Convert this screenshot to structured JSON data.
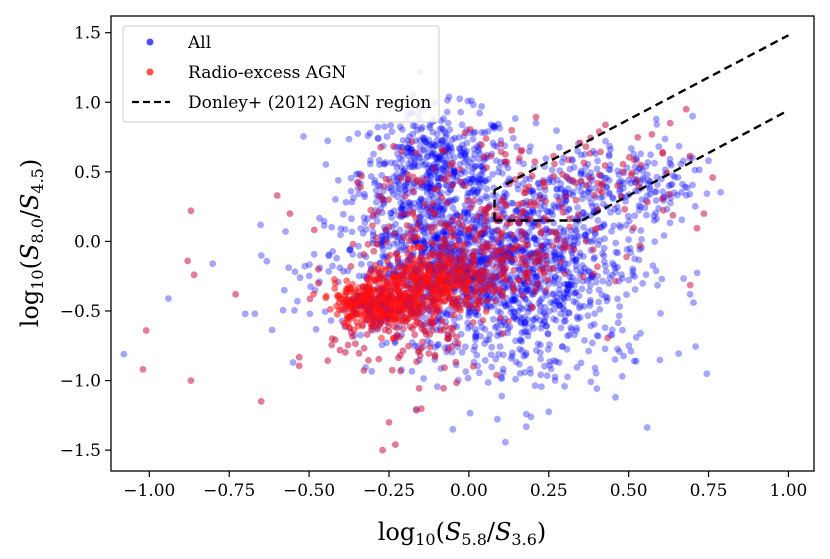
{
  "chart_data": {
    "type": "scatter",
    "xlabel": "log10(S5.8/S3.6)",
    "ylabel": "log10(S8.0/S4.5)",
    "xlim": [
      -1.12,
      1.08
    ],
    "ylim": [
      -1.65,
      1.62
    ],
    "x_ticks": [
      -1.0,
      -0.75,
      -0.5,
      -0.25,
      0.0,
      0.25,
      0.5,
      0.75,
      1.0
    ],
    "x_tick_labels": [
      "−1.00",
      "−0.75",
      "−0.50",
      "−0.25",
      "0.00",
      "0.25",
      "0.50",
      "0.75",
      "1.00"
    ],
    "y_ticks": [
      -1.5,
      -1.0,
      -0.5,
      0.0,
      0.5,
      1.0,
      1.5
    ],
    "y_tick_labels": [
      "−1.5",
      "−1.0",
      "−0.5",
      "0.0",
      "0.5",
      "1.0",
      "1.5"
    ],
    "grid": false,
    "legend_position": "top-left",
    "legend": [
      {
        "label": "All",
        "marker": "circle",
        "color": "#4d4dff"
      },
      {
        "label": "Radio-excess AGN",
        "marker": "circle",
        "color": "#ff5050"
      },
      {
        "label": "Donley+ (2012) AGN region",
        "marker": "dashed-line",
        "color": "#000000"
      }
    ],
    "series": [
      {
        "name": "All",
        "color": "#0000ff",
        "opacity": 0.35,
        "clusters": [
          {
            "cx": -0.1,
            "cy": 0.5,
            "sx": 0.12,
            "sy": 0.22,
            "n": 520
          },
          {
            "cx": -0.05,
            "cy": -0.2,
            "sx": 0.2,
            "sy": 0.25,
            "n": 900
          },
          {
            "cx": 0.2,
            "cy": -0.15,
            "sx": 0.18,
            "sy": 0.28,
            "n": 450
          },
          {
            "cx": 0.35,
            "cy": 0.35,
            "sx": 0.15,
            "sy": 0.18,
            "n": 200
          },
          {
            "cx": 0.15,
            "cy": -0.7,
            "sx": 0.18,
            "sy": 0.25,
            "n": 200
          },
          {
            "cx": 0.55,
            "cy": 0.45,
            "sx": 0.1,
            "sy": 0.12,
            "n": 80
          }
        ],
        "outliers": [
          {
            "x": -1.08,
            "y": -0.81
          },
          {
            "x": -0.94,
            "y": -0.41
          },
          {
            "x": -0.7,
            "y": -0.52
          },
          {
            "x": -0.67,
            "y": -0.52
          },
          {
            "x": 0.75,
            "y": 0.58
          },
          {
            "x": 0.7,
            "y": 0.9
          },
          {
            "x": 0.04,
            "y": 0.97
          },
          {
            "x": -0.18,
            "y": 0.92
          },
          {
            "x": 0.48,
            "y": -0.97
          },
          {
            "x": -0.55,
            "y": -0.87
          },
          {
            "x": -0.05,
            "y": -1.35
          },
          {
            "x": 0.21,
            "y": 0.85
          }
        ]
      },
      {
        "name": "Radio-excess AGN",
        "color": "#cc1144",
        "core_color": "#ff1010",
        "opacity": 0.55,
        "clusters": [
          {
            "cx": -0.28,
            "cy": -0.45,
            "sx": 0.07,
            "sy": 0.08,
            "n": 380,
            "core": true
          },
          {
            "cx": -0.12,
            "cy": -0.3,
            "sx": 0.1,
            "sy": 0.1,
            "n": 320,
            "core": true
          },
          {
            "cx": 0.05,
            "cy": -0.15,
            "sx": 0.15,
            "sy": 0.18,
            "n": 260
          },
          {
            "cx": -0.2,
            "cy": -0.6,
            "sx": 0.12,
            "sy": 0.25,
            "n": 160
          },
          {
            "cx": 0.3,
            "cy": 0.35,
            "sx": 0.18,
            "sy": 0.22,
            "n": 120
          },
          {
            "cx": -0.1,
            "cy": 0.25,
            "sx": 0.15,
            "sy": 0.25,
            "n": 100
          }
        ],
        "outliers": [
          {
            "x": -0.87,
            "y": 0.22
          },
          {
            "x": -0.86,
            "y": -0.24
          },
          {
            "x": -0.88,
            "y": -0.14
          },
          {
            "x": -1.01,
            "y": -0.64
          },
          {
            "x": -1.02,
            "y": -0.92
          },
          {
            "x": -0.87,
            "y": -1.0
          },
          {
            "x": -0.65,
            "y": -1.15
          },
          {
            "x": -0.73,
            "y": -0.38
          },
          {
            "x": -0.6,
            "y": 0.33
          },
          {
            "x": -0.56,
            "y": 0.2
          },
          {
            "x": 0.68,
            "y": 0.95
          },
          {
            "x": 0.63,
            "y": 0.85
          },
          {
            "x": -0.27,
            "y": -1.5
          },
          {
            "x": -0.23,
            "y": -1.46
          },
          {
            "x": 0.1,
            "y": 0.7
          }
        ]
      }
    ],
    "donley_region": {
      "upper_line": [
        [
          0.08,
          0.3681
        ],
        [
          1.0,
          1.4813
        ]
      ],
      "left_edge": [
        [
          0.08,
          0.15
        ],
        [
          0.08,
          0.3681
        ]
      ],
      "bottom_edge": [
        [
          0.08,
          0.15
        ],
        [
          0.3537,
          0.15
        ]
      ],
      "lower_line": [
        [
          0.3537,
          0.15
        ],
        [
          1.0,
          0.9424
        ]
      ]
    }
  }
}
